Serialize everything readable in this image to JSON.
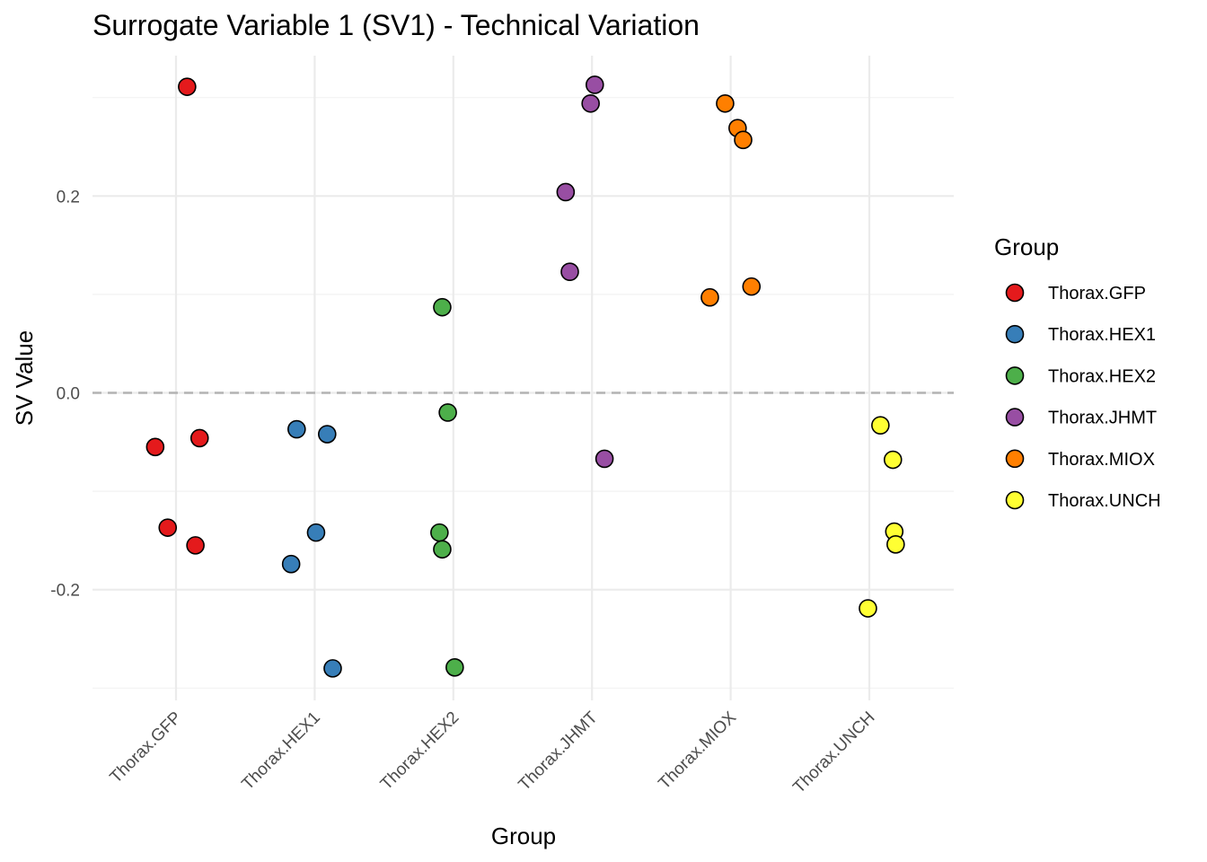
{
  "chart_data": {
    "type": "scatter",
    "title": "Surrogate Variable 1 (SV1) - Technical Variation",
    "xlabel": "Group",
    "ylabel": "SV Value",
    "categories": [
      "Thorax.GFP",
      "Thorax.HEX1",
      "Thorax.HEX2",
      "Thorax.JHMT",
      "Thorax.MIOX",
      "Thorax.UNCH"
    ],
    "ylim": [
      -0.3,
      0.3
    ],
    "yticks": [
      -0.2,
      0.0,
      0.2
    ],
    "ytick_labels": [
      "-0.2",
      "0.0",
      "0.2"
    ],
    "reference_line": {
      "y": 0.0,
      "style": "dashed"
    },
    "grid": true,
    "legend": {
      "title": "Group",
      "placement": "right"
    },
    "series": [
      {
        "name": "Thorax.GFP",
        "color": "#E41A1C",
        "points": [
          {
            "jitter": 0.08,
            "y": 0.311
          },
          {
            "jitter": -0.15,
            "y": -0.055
          },
          {
            "jitter": 0.17,
            "y": -0.046
          },
          {
            "jitter": -0.06,
            "y": -0.137
          },
          {
            "jitter": 0.14,
            "y": -0.155
          }
        ]
      },
      {
        "name": "Thorax.HEX1",
        "color": "#377EB8",
        "points": [
          {
            "jitter": -0.13,
            "y": -0.037
          },
          {
            "jitter": 0.09,
            "y": -0.042
          },
          {
            "jitter": 0.01,
            "y": -0.142
          },
          {
            "jitter": -0.17,
            "y": -0.174
          },
          {
            "jitter": 0.13,
            "y": -0.28
          }
        ]
      },
      {
        "name": "Thorax.HEX2",
        "color": "#4DAF4A",
        "points": [
          {
            "jitter": -0.08,
            "y": 0.087
          },
          {
            "jitter": -0.04,
            "y": -0.02
          },
          {
            "jitter": -0.1,
            "y": -0.142
          },
          {
            "jitter": -0.08,
            "y": -0.159
          },
          {
            "jitter": 0.01,
            "y": -0.279
          }
        ]
      },
      {
        "name": "Thorax.JHMT",
        "color": "#984EA3",
        "points": [
          {
            "jitter": 0.02,
            "y": 0.313
          },
          {
            "jitter": -0.01,
            "y": 0.294
          },
          {
            "jitter": -0.19,
            "y": 0.204
          },
          {
            "jitter": -0.16,
            "y": 0.123
          },
          {
            "jitter": 0.09,
            "y": -0.067
          }
        ]
      },
      {
        "name": "Thorax.MIOX",
        "color": "#FF7F00",
        "points": [
          {
            "jitter": -0.04,
            "y": 0.294
          },
          {
            "jitter": 0.05,
            "y": 0.269
          },
          {
            "jitter": 0.09,
            "y": 0.257
          },
          {
            "jitter": -0.15,
            "y": 0.097
          },
          {
            "jitter": 0.15,
            "y": 0.108
          }
        ]
      },
      {
        "name": "Thorax.UNCH",
        "color": "#FFFF33",
        "points": [
          {
            "jitter": 0.08,
            "y": -0.033
          },
          {
            "jitter": 0.17,
            "y": -0.068
          },
          {
            "jitter": 0.18,
            "y": -0.141
          },
          {
            "jitter": 0.19,
            "y": -0.154
          },
          {
            "jitter": -0.01,
            "y": -0.219
          }
        ]
      }
    ]
  }
}
